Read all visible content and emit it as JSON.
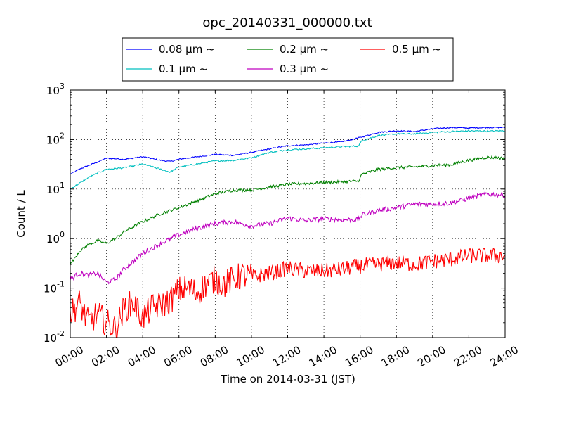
{
  "chart_data": {
    "type": "line",
    "title": "opc_20140331_000000.txt",
    "xlabel": "Time on 2014-03-31 (JST)",
    "ylabel": "Count / L",
    "x_range_hours": [
      0,
      24
    ],
    "x_ticks": [
      {
        "hour": 0,
        "label": "00:00"
      },
      {
        "hour": 2,
        "label": "02:00"
      },
      {
        "hour": 4,
        "label": "04:00"
      },
      {
        "hour": 6,
        "label": "06:00"
      },
      {
        "hour": 8,
        "label": "08:00"
      },
      {
        "hour": 10,
        "label": "10:00"
      },
      {
        "hour": 12,
        "label": "12:00"
      },
      {
        "hour": 14,
        "label": "14:00"
      },
      {
        "hour": 16,
        "label": "16:00"
      },
      {
        "hour": 18,
        "label": "18:00"
      },
      {
        "hour": 20,
        "label": "20:00"
      },
      {
        "hour": 22,
        "label": "22:00"
      },
      {
        "hour": 24,
        "label": "24:00"
      }
    ],
    "y_scale": "log",
    "ylim": [
      0.01,
      1000
    ],
    "y_ticks": [
      {
        "value": 0.01,
        "base": "10",
        "exp": "-2"
      },
      {
        "value": 0.1,
        "base": "10",
        "exp": "-1"
      },
      {
        "value": 1,
        "base": "10",
        "exp": "0"
      },
      {
        "value": 10,
        "base": "10",
        "exp": "1"
      },
      {
        "value": 100,
        "base": "10",
        "exp": "2"
      },
      {
        "value": 1000,
        "base": "10",
        "exp": "3"
      }
    ],
    "grid": true,
    "legend_placement": "top-center, above plot",
    "series": [
      {
        "name": "0.08 μm ~",
        "color": "#0000ff",
        "x": [
          0,
          0.5,
          1,
          1.5,
          2,
          3,
          4,
          5,
          5.5,
          6,
          7,
          8,
          9,
          10,
          11,
          12,
          13,
          14,
          15,
          16,
          17,
          18,
          19,
          20,
          21,
          22,
          23,
          24
        ],
        "y": [
          20,
          25,
          30,
          35,
          42,
          40,
          45,
          38,
          36,
          40,
          45,
          50,
          48,
          55,
          65,
          75,
          78,
          85,
          90,
          110,
          140,
          150,
          145,
          165,
          175,
          170,
          175,
          175
        ]
      },
      {
        "name": "0.1 μm ~",
        "color": "#00bfbf",
        "x": [
          0,
          0.5,
          1,
          1.5,
          2,
          3,
          4,
          5,
          5.5,
          6,
          7,
          8,
          9,
          10,
          11,
          12,
          13,
          14,
          15,
          15.9,
          16.1,
          17,
          18,
          19,
          20,
          21,
          22,
          23,
          24
        ],
        "y": [
          10,
          13,
          17,
          21,
          25,
          27,
          32,
          25,
          22,
          28,
          32,
          37,
          38,
          43,
          55,
          62,
          65,
          68,
          72,
          74,
          95,
          120,
          130,
          130,
          140,
          145,
          150,
          148,
          150
        ]
      },
      {
        "name": "0.2 μm ~",
        "color": "#008000",
        "x": [
          0,
          0.5,
          1,
          1.5,
          2,
          2.5,
          3,
          4,
          5,
          6,
          7,
          8,
          9,
          10,
          11,
          12,
          13,
          14,
          15,
          15.9,
          16.1,
          17,
          18,
          19,
          20,
          21,
          22,
          23,
          24
        ],
        "y": [
          0.3,
          0.55,
          0.75,
          0.9,
          0.8,
          1.0,
          1.4,
          2.2,
          3.2,
          4.2,
          5.8,
          8.0,
          9.5,
          9.5,
          11.0,
          12.5,
          13.0,
          13.5,
          14.0,
          14.5,
          20,
          25,
          27,
          28,
          30,
          31,
          38,
          44,
          42
        ]
      },
      {
        "name": "0.3 μm ~",
        "color": "#bf00bf",
        "x": [
          0,
          0.5,
          1,
          1.5,
          2,
          2.5,
          3,
          4,
          5,
          6,
          7,
          8,
          9,
          10,
          11,
          12,
          13,
          14,
          15,
          15.9,
          16.1,
          17,
          18,
          19,
          20,
          21,
          22,
          23,
          24
        ],
        "y": [
          0.15,
          0.2,
          0.18,
          0.2,
          0.13,
          0.15,
          0.25,
          0.5,
          0.8,
          1.2,
          1.6,
          2.0,
          2.2,
          1.8,
          2.0,
          2.6,
          2.3,
          2.5,
          2.4,
          2.4,
          3.0,
          3.7,
          4.2,
          5.0,
          5.0,
          5.2,
          6.5,
          8.0,
          7.5
        ]
      },
      {
        "name": "0.5 μm ~",
        "color": "#ff0000",
        "x": [
          0,
          0.5,
          1,
          1.5,
          2,
          2.5,
          3,
          3.5,
          4,
          4.5,
          5,
          5.5,
          6,
          6.5,
          7,
          7.5,
          8,
          8.5,
          9,
          9.5,
          10,
          11,
          12,
          13,
          14,
          15,
          16,
          17,
          18,
          19,
          20,
          21,
          22,
          23,
          24
        ],
        "y": [
          0.03,
          0.05,
          0.02,
          0.03,
          0.02,
          0.015,
          0.04,
          0.05,
          0.025,
          0.04,
          0.045,
          0.055,
          0.09,
          0.1,
          0.08,
          0.12,
          0.15,
          0.12,
          0.15,
          0.18,
          0.17,
          0.2,
          0.25,
          0.22,
          0.22,
          0.24,
          0.28,
          0.3,
          0.33,
          0.3,
          0.35,
          0.38,
          0.45,
          0.45,
          0.45
        ]
      }
    ]
  }
}
